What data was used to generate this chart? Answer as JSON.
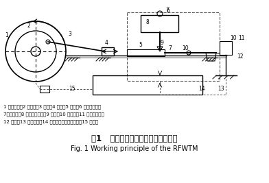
{
  "title_cn": "图1   往复式摩擦磨损试验机工作原理",
  "title_en": "Fig. 1 Working principle of the RFWTM",
  "legend_line1": "1 变频电机；2 曲柄盘；3 连杆；4 滑座；5 试件；6 磨头测温计；",
  "legend_line2": "7配重砝码；8 摩擦力传感器；9 磨头；10 支撑臂；11 位移传感器；",
  "legend_line3": "12 支架；13 加热装置；14 计算机及电气控制系统；15 转速计",
  "bg_color": "#ffffff",
  "line_color": "#000000",
  "dashed_color": "#555555"
}
